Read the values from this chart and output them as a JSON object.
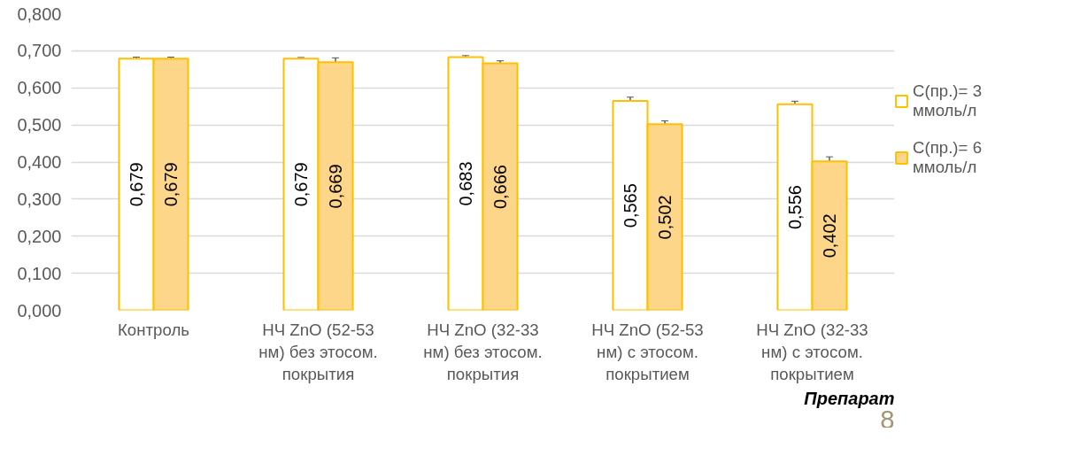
{
  "chart_data": {
    "type": "bar",
    "xlabel": "Препарат",
    "categories": [
      "Контроль",
      "НЧ ZnO (52-53 нм) без этосом. покрытия",
      "НЧ ZnO (32-33 нм) без этосом. покрытия",
      "НЧ ZnO (52-53 нм) с этосом. покрытием",
      "НЧ ZnO (32-33 нм) с этосом. покрытием"
    ],
    "series": [
      {
        "name": "С(пр.)= 3 ммоль/л",
        "color": "#ffffff",
        "values": [
          0.679,
          0.679,
          0.683,
          0.565,
          0.556
        ],
        "errors": [
          0.004,
          0.003,
          0.004,
          0.01,
          0.008
        ],
        "value_labels": [
          "0,679",
          "0,679",
          "0,683",
          "0,565",
          "0,556"
        ]
      },
      {
        "name": "С(пр.)= 6 ммоль/л",
        "color": "#fed68a",
        "values": [
          0.679,
          0.669,
          0.666,
          0.502,
          0.402
        ],
        "errors": [
          0.004,
          0.012,
          0.007,
          0.009,
          0.012
        ],
        "value_labels": [
          "0,679",
          "0,669",
          "0,666",
          "0,502",
          "0,402"
        ]
      }
    ],
    "ylim": [
      0,
      0.8
    ],
    "yticks": [
      {
        "value": 0,
        "label": "0,000"
      },
      {
        "value": 0.1,
        "label": "0,100"
      },
      {
        "value": 0.2,
        "label": "0,200"
      },
      {
        "value": 0.3,
        "label": "0,300"
      },
      {
        "value": 0.4,
        "label": "0,400"
      },
      {
        "value": 0.5,
        "label": "0,500"
      },
      {
        "value": 0.6,
        "label": "0,600"
      },
      {
        "value": 0.7,
        "label": "0,700"
      },
      {
        "value": 0.8,
        "label": "0,800"
      }
    ],
    "grid": "y",
    "legend": "right",
    "annotations": [
      "8"
    ]
  }
}
